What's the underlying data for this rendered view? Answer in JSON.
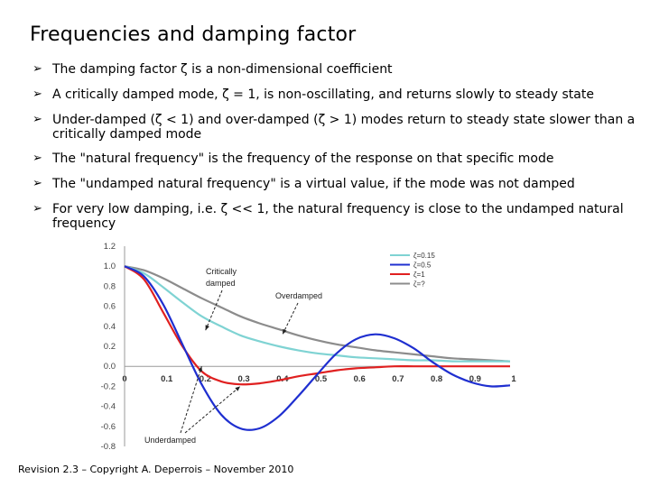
{
  "slide": {
    "title": "Frequencies and damping factor",
    "bullets": [
      "The damping factor ζ is a non-dimensional coefficient",
      "A critically damped mode, ζ = 1, is non-oscillating, and returns slowly to steady state",
      "Under-damped (ζ < 1) and over-damped (ζ > 1) modes return to steady state slower than a critically damped mode",
      "The \"natural frequency\" is the frequency of the response on that specific mode",
      "The \"undamped natural frequency\" is a virtual value, if the mode was not damped",
      "For very low damping, i.e. ζ << 1, the natural frequency is close to the undamped natural frequency"
    ],
    "footer": "Revision 2.3 – Copyright A. Deperrois – November 2010"
  },
  "chart_data": {
    "type": "line",
    "title": "",
    "xlabel": "",
    "ylabel": "",
    "xlim": [
      0,
      1
    ],
    "ylim": [
      -0.8,
      1.2
    ],
    "x_ticks": [
      "0",
      "0.1",
      "0.2",
      "0.3",
      "0.4",
      "0.5",
      "0.6",
      "0.7",
      "0.8",
      "0.9",
      "1"
    ],
    "y_ticks": [
      "1.2",
      "1.0",
      "0.8",
      "0.6",
      "0.4",
      "0.2",
      "0.0",
      "-0.2",
      "-0.4",
      "-0.6",
      "-0.8"
    ],
    "grid": false,
    "legend_position": "top-right",
    "x": [
      0.0,
      0.05,
      0.1,
      0.15,
      0.2,
      0.25,
      0.3,
      0.35,
      0.4,
      0.45,
      0.5,
      0.55,
      0.6,
      0.65,
      0.7,
      0.75,
      0.8,
      0.85,
      0.9,
      0.95,
      1.0
    ],
    "series": [
      {
        "name": "ζ=0.15",
        "color": "#7fd3d3",
        "values": [
          1.0,
          0.93,
          0.79,
          0.64,
          0.5,
          0.4,
          0.31,
          0.25,
          0.2,
          0.16,
          0.13,
          0.11,
          0.09,
          0.08,
          0.07,
          0.06,
          0.06,
          0.05,
          0.05,
          0.05,
          0.05
        ]
      },
      {
        "name": "ζ=0.5",
        "color": "#1f2fd0",
        "values": [
          1.0,
          0.9,
          0.62,
          0.22,
          -0.18,
          -0.48,
          -0.62,
          -0.62,
          -0.5,
          -0.3,
          -0.08,
          0.13,
          0.27,
          0.32,
          0.28,
          0.18,
          0.04,
          -0.08,
          -0.16,
          -0.2,
          -0.19
        ]
      },
      {
        "name": "ζ=1",
        "color": "#e02020",
        "values": [
          1.0,
          0.87,
          0.54,
          0.2,
          -0.05,
          -0.15,
          -0.18,
          -0.17,
          -0.14,
          -0.1,
          -0.07,
          -0.04,
          -0.02,
          -0.01,
          0.0,
          0.0,
          0.0,
          0.0,
          0.0,
          0.0,
          0.0
        ]
      },
      {
        "name": "ζ=?",
        "color": "#8c8c8c",
        "values": [
          1.0,
          0.96,
          0.88,
          0.78,
          0.68,
          0.59,
          0.5,
          0.43,
          0.37,
          0.31,
          0.26,
          0.22,
          0.19,
          0.16,
          0.14,
          0.12,
          0.1,
          0.08,
          0.07,
          0.06,
          0.05
        ]
      }
    ],
    "annotations": [
      {
        "text": "Critically",
        "target_x": 0.21,
        "target_y": 0.36
      },
      {
        "text": "damped",
        "target_x": 0.21,
        "target_y": 0.36
      },
      {
        "text": "Overdamped",
        "target_x": 0.41,
        "target_y": 0.32
      },
      {
        "text": "Underdamped",
        "target_x": 0.2,
        "target_y": 0.0
      }
    ]
  }
}
